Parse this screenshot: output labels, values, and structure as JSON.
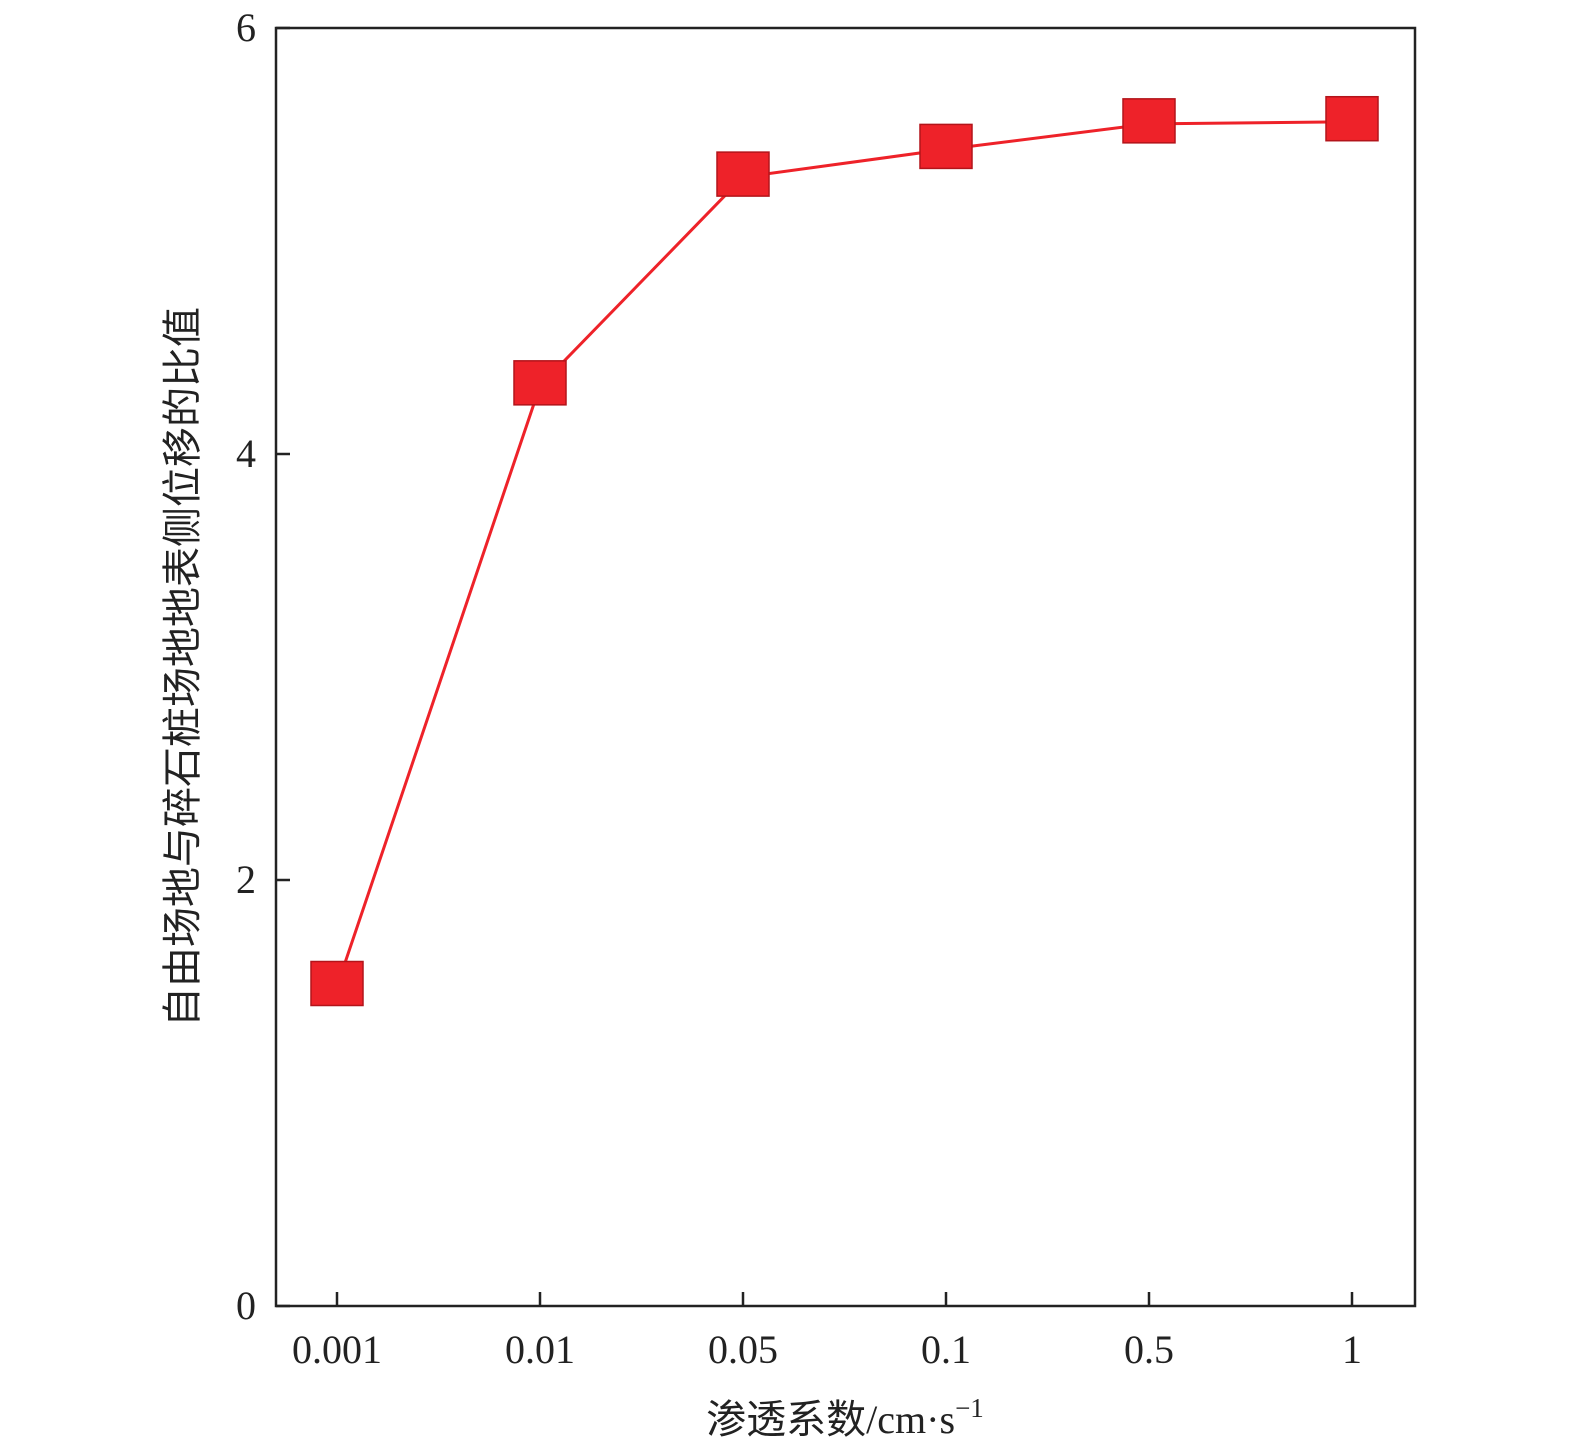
{
  "chart_data": {
    "type": "line",
    "title": "",
    "xlabel": "渗透系数/cm·s",
    "xlabel_superscript": "−1",
    "ylabel": "自由场地与碎石桩场地地表侧位移的比值",
    "categories": [
      "0.001",
      "0.01",
      "0.05",
      "0.1",
      "0.5",
      "1"
    ],
    "series": [
      {
        "values": [
          1.5,
          4.32,
          5.3,
          5.43,
          5.55,
          5.56
        ]
      }
    ],
    "ylim": [
      0,
      6
    ],
    "yticks": [
      0,
      2,
      4,
      6
    ],
    "grid": false,
    "colors": {
      "series": "#ee2229",
      "marker_edge": "#b3141a",
      "axis": "#222222"
    }
  }
}
